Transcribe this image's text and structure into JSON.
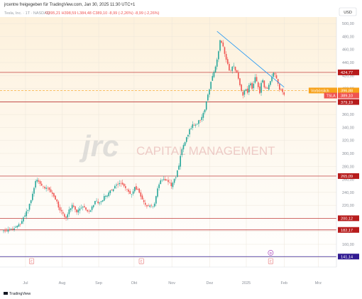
{
  "header": {
    "published": "jrcentre freigegeben für TradingView.com, Jan 30, 2025 11:30 UTC+1",
    "symbol_line": "Tesla, Inc. · 1T · NASDAQ",
    "ohlc": "O395,21  H398,59  L384,48  C389,10  -8,99 (-2,26%)  -8,99 (-2,26%)"
  },
  "currency_label": "USD",
  "watermark": {
    "logo": "jrc",
    "tagline": "CAPITAL MANAGEMENT"
  },
  "footer": {
    "brand": "TradingView"
  },
  "colors": {
    "up": "#26a69a",
    "down": "#ef5350",
    "accent_orange": "#f7a21b",
    "tsla_label": "#ef5350",
    "support_line": "#b71c1c",
    "trendline": "#2196f3",
    "low_line": "#311b92",
    "background_top": "#fdf3df",
    "background_bottom": "#ffffff"
  },
  "chart_data": {
    "type": "candlestick",
    "symbol": "TSLA",
    "y_range": [
      125,
      510
    ],
    "y_ticks": [
      120,
      140,
      160,
      180,
      200,
      220,
      240,
      260,
      280,
      300,
      320,
      340,
      360,
      380,
      400,
      420,
      440,
      460,
      480,
      500
    ],
    "x_labels": [
      "Jul",
      "Aug",
      "Sep",
      "Okt",
      "Nov",
      "Dez",
      "2025",
      "Feb",
      "Mrz"
    ],
    "x_label_days": [
      18,
      48,
      78,
      107,
      138,
      169,
      199,
      230,
      258
    ],
    "x_range_days": [
      0,
      270
    ],
    "horizontal_levels": [
      {
        "price": 424.77,
        "label": "424,77",
        "style": "solid",
        "color": "#b71c1c",
        "label_bg": "#b71c1c"
      },
      {
        "price": 396.88,
        "label": "396,88",
        "style": "dashed",
        "color": "#f7a21b",
        "label_bg": "#f7a21b",
        "tag": "Vorbörslich"
      },
      {
        "price": 389.1,
        "label": "389,10",
        "style": "none",
        "color": "#ef5350",
        "label_bg": "#ef5350",
        "tag": "TSLA"
      },
      {
        "price": 379.19,
        "label": "379,19",
        "style": "solid",
        "color": "#b71c1c",
        "label_bg": "#b71c1c"
      },
      {
        "price": 265.09,
        "label": "265,09",
        "style": "solid",
        "color": "#b71c1c",
        "label_bg": "#b71c1c"
      },
      {
        "price": 200.12,
        "label": "200,12",
        "style": "solid",
        "color": "#b71c1c",
        "label_bg": "#b71c1c"
      },
      {
        "price": 182.17,
        "label": "182,17",
        "style": "solid",
        "color": "#b71c1c",
        "label_bg": "#b71c1c"
      },
      {
        "price": 141.14,
        "label": "141,14",
        "style": "solid",
        "color": "#311b92",
        "label_bg": "#311b92"
      }
    ],
    "trendline": {
      "from": [
        175,
        488
      ],
      "to": [
        230,
        402
      ]
    },
    "event_markers": [
      {
        "day": 23,
        "label": "E"
      },
      {
        "day": 113,
        "label": "E"
      },
      {
        "day": 219,
        "label": "D"
      },
      {
        "day": 219,
        "label": "E"
      }
    ],
    "price_path": [
      [
        0,
        180
      ],
      [
        4,
        184
      ],
      [
        8,
        182
      ],
      [
        12,
        188
      ],
      [
        16,
        198
      ],
      [
        20,
        215
      ],
      [
        24,
        238
      ],
      [
        27,
        262
      ],
      [
        30,
        255
      ],
      [
        33,
        246
      ],
      [
        36,
        249
      ],
      [
        39,
        241
      ],
      [
        42,
        232
      ],
      [
        45,
        218
      ],
      [
        48,
        209
      ],
      [
        51,
        198
      ],
      [
        54,
        215
      ],
      [
        57,
        222
      ],
      [
        60,
        211
      ],
      [
        63,
        216
      ],
      [
        66,
        219
      ],
      [
        69,
        212
      ],
      [
        72,
        214
      ],
      [
        75,
        228
      ],
      [
        78,
        221
      ],
      [
        81,
        229
      ],
      [
        84,
        235
      ],
      [
        87,
        240
      ],
      [
        90,
        246
      ],
      [
        93,
        252
      ],
      [
        96,
        255
      ],
      [
        99,
        250
      ],
      [
        102,
        244
      ],
      [
        105,
        236
      ],
      [
        108,
        249
      ],
      [
        111,
        239
      ],
      [
        114,
        226
      ],
      [
        117,
        218
      ],
      [
        120,
        219
      ],
      [
        123,
        217
      ],
      [
        126,
        245
      ],
      [
        129,
        257
      ],
      [
        132,
        260
      ],
      [
        135,
        255
      ],
      [
        138,
        250
      ],
      [
        141,
        262
      ],
      [
        144,
        285
      ],
      [
        147,
        312
      ],
      [
        150,
        325
      ],
      [
        153,
        338
      ],
      [
        156,
        345
      ],
      [
        159,
        348
      ],
      [
        162,
        352
      ],
      [
        165,
        368
      ],
      [
        168,
        395
      ],
      [
        171,
        418
      ],
      [
        174,
        434
      ],
      [
        176,
        455
      ],
      [
        178,
        478
      ],
      [
        180,
        463
      ],
      [
        182,
        450
      ],
      [
        184,
        436
      ],
      [
        186,
        424
      ],
      [
        188,
        440
      ],
      [
        190,
        430
      ],
      [
        192,
        418
      ],
      [
        194,
        404
      ],
      [
        196,
        388
      ],
      [
        198,
        402
      ],
      [
        200,
        395
      ],
      [
        202,
        410
      ],
      [
        204,
        398
      ],
      [
        206,
        420
      ],
      [
        208,
        410
      ],
      [
        210,
        392
      ],
      [
        212,
        415
      ],
      [
        214,
        402
      ],
      [
        216,
        398
      ],
      [
        218,
        408
      ],
      [
        220,
        418
      ],
      [
        222,
        428
      ],
      [
        224,
        412
      ],
      [
        226,
        400
      ],
      [
        228,
        397
      ],
      [
        230,
        389
      ]
    ],
    "last_price": 389.1
  }
}
